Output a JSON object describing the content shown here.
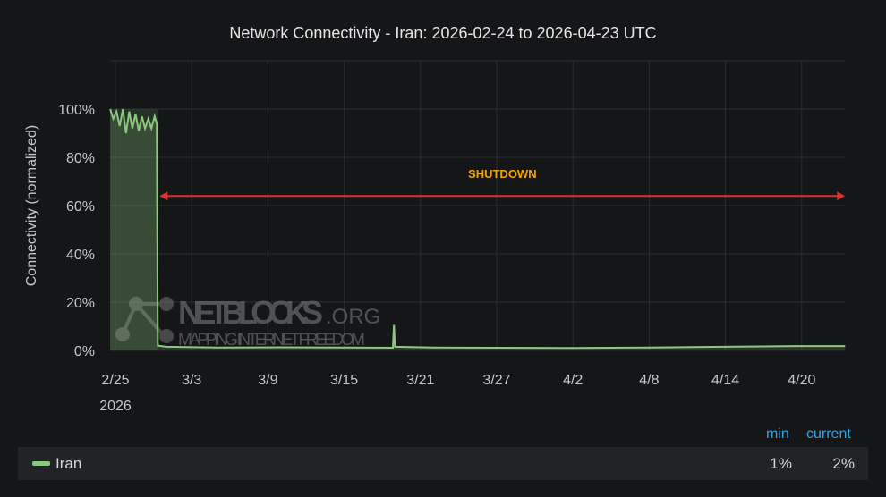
{
  "chart_data": {
    "type": "area",
    "title": "Network Connectivity - Iran: 2026-02-24 to 2026-04-23 UTC",
    "ylabel": "Connectivity (normalized)",
    "xlabel": "",
    "ylim": [
      0,
      110
    ],
    "xlim": [
      "2026-02-24T14:00",
      "2026-04-23T10:00"
    ],
    "y_ticks": [
      "0%",
      "20%",
      "40%",
      "60%",
      "80%",
      "100%"
    ],
    "x_ticks": [
      {
        "date": "2026-02-25",
        "label": "2/25",
        "sub": "2026"
      },
      {
        "date": "2026-03-03",
        "label": "3/3"
      },
      {
        "date": "2026-03-09",
        "label": "3/9"
      },
      {
        "date": "2026-03-15",
        "label": "3/15"
      },
      {
        "date": "2026-03-21",
        "label": "3/21"
      },
      {
        "date": "2026-03-27",
        "label": "3/27"
      },
      {
        "date": "2026-04-02",
        "label": "4/2"
      },
      {
        "date": "2026-04-08",
        "label": "4/8"
      },
      {
        "date": "2026-04-14",
        "label": "4/14"
      },
      {
        "date": "2026-04-20",
        "label": "4/20"
      }
    ],
    "grid": true,
    "series": [
      {
        "name": "Iran",
        "color": "#8bc97f",
        "points": [
          [
            "2026-02-24T14:00",
            100
          ],
          [
            "2026-02-24T20:00",
            96
          ],
          [
            "2026-02-25T02:00",
            99
          ],
          [
            "2026-02-25T08:00",
            93
          ],
          [
            "2026-02-25T14:00",
            100
          ],
          [
            "2026-02-25T20:00",
            90
          ],
          [
            "2026-02-26T02:00",
            99
          ],
          [
            "2026-02-26T08:00",
            92
          ],
          [
            "2026-02-26T14:00",
            98
          ],
          [
            "2026-02-26T20:00",
            91
          ],
          [
            "2026-02-27T02:00",
            97
          ],
          [
            "2026-02-27T08:00",
            92
          ],
          [
            "2026-02-27T14:00",
            96
          ],
          [
            "2026-02-27T20:00",
            92
          ],
          [
            "2026-02-28T02:00",
            97
          ],
          [
            "2026-02-28T06:00",
            94
          ],
          [
            "2026-02-28T08:00",
            2
          ],
          [
            "2026-03-01",
            1.5
          ],
          [
            "2026-03-05",
            1.2
          ],
          [
            "2026-03-10",
            1.3
          ],
          [
            "2026-03-15",
            1.2
          ],
          [
            "2026-03-18T20:00",
            1.1
          ],
          [
            "2026-03-18T22:00",
            10.5
          ],
          [
            "2026-03-19T00:00",
            1.5
          ],
          [
            "2026-03-22",
            1.2
          ],
          [
            "2026-03-27",
            1.1
          ],
          [
            "2026-04-02",
            1
          ],
          [
            "2026-04-08",
            1.2
          ],
          [
            "2026-04-14",
            1.5
          ],
          [
            "2026-04-20",
            1.8
          ],
          [
            "2026-04-23T10:00",
            1.8
          ]
        ]
      }
    ],
    "annotations": [
      {
        "label": "SHUTDOWN",
        "from": "2026-02-28T08:00",
        "to": "2026-04-23T10:00",
        "y": 64,
        "color": "#e02f2f",
        "label_color": "#f2a600"
      }
    ],
    "shaded_region": {
      "from": "2026-02-24T14:00",
      "to": "2026-02-28T08:00"
    },
    "legend": {
      "placement": "bottom",
      "columns": [
        "min",
        "current"
      ],
      "rows": [
        {
          "name": "Iran",
          "min": "1%",
          "current": "2%"
        }
      ]
    }
  },
  "watermark": {
    "name": "NETBLOCKS",
    "suffix": ".ORG",
    "tm": "™",
    "tagline": "MAPPING INTERNET FREEDOM"
  }
}
